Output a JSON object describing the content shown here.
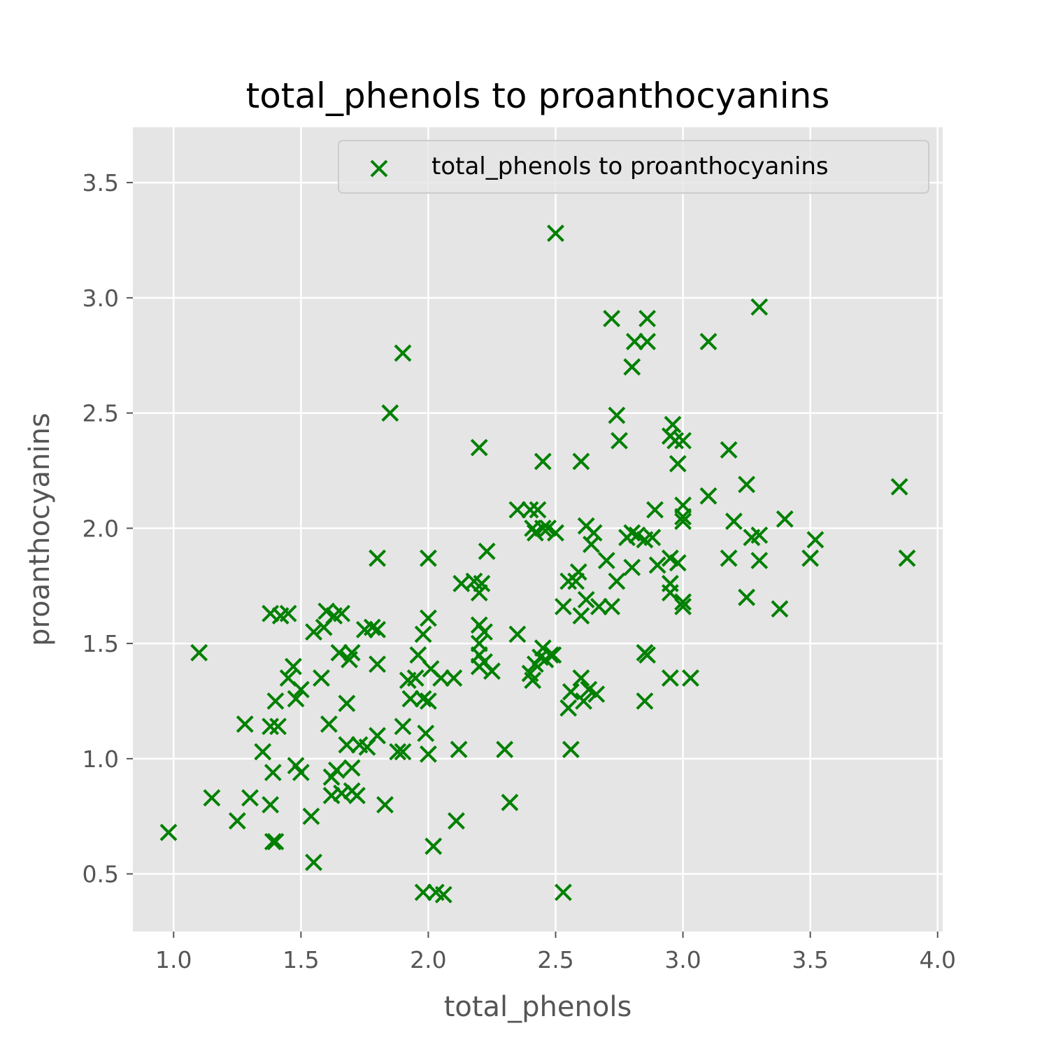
{
  "chart_data": {
    "type": "scatter",
    "title": "total_phenols to proanthocyanins",
    "xlabel": "total_phenols",
    "ylabel": "proanthocyanins",
    "xlim": [
      0.84,
      4.02
    ],
    "ylim": [
      0.25,
      3.74
    ],
    "xticks": [
      "1.0",
      "1.5",
      "2.0",
      "2.5",
      "3.0",
      "3.5",
      "4.0"
    ],
    "yticks": [
      "0.5",
      "1.0",
      "1.5",
      "2.0",
      "2.5",
      "3.0",
      "3.5"
    ],
    "grid": true,
    "legend_position": "upper right",
    "marker": "x",
    "marker_color": "#008000",
    "background_color": "#E5E5E5",
    "series": [
      {
        "name": "total_phenols to proanthocyanins",
        "points": [
          [
            0.98,
            0.68
          ],
          [
            1.1,
            1.46
          ],
          [
            1.15,
            0.83
          ],
          [
            1.25,
            0.73
          ],
          [
            1.28,
            1.15
          ],
          [
            1.3,
            0.83
          ],
          [
            1.35,
            1.03
          ],
          [
            1.38,
            1.63
          ],
          [
            1.38,
            1.14
          ],
          [
            1.38,
            0.8
          ],
          [
            1.39,
            0.94
          ],
          [
            1.39,
            0.64
          ],
          [
            1.4,
            1.25
          ],
          [
            1.4,
            0.64
          ],
          [
            1.41,
            1.14
          ],
          [
            1.42,
            1.62
          ],
          [
            1.45,
            1.63
          ],
          [
            1.45,
            1.35
          ],
          [
            1.47,
            1.4
          ],
          [
            1.48,
            1.26
          ],
          [
            1.48,
            0.97
          ],
          [
            1.5,
            1.3
          ],
          [
            1.5,
            0.94
          ],
          [
            1.54,
            0.75
          ],
          [
            1.55,
            1.55
          ],
          [
            1.55,
            0.55
          ],
          [
            1.58,
            1.35
          ],
          [
            1.59,
            1.57
          ],
          [
            1.6,
            1.64
          ],
          [
            1.61,
            1.15
          ],
          [
            1.62,
            0.92
          ],
          [
            1.62,
            0.84
          ],
          [
            1.63,
            1.62
          ],
          [
            1.64,
            0.95
          ],
          [
            1.65,
            1.46
          ],
          [
            1.66,
            1.63
          ],
          [
            1.66,
            0.85
          ],
          [
            1.68,
            1.24
          ],
          [
            1.68,
            1.06
          ],
          [
            1.69,
            1.43
          ],
          [
            1.7,
            1.46
          ],
          [
            1.7,
            0.96
          ],
          [
            1.7,
            0.86
          ],
          [
            1.72,
            0.84
          ],
          [
            1.73,
            1.06
          ],
          [
            1.75,
            1.56
          ],
          [
            1.76,
            1.05
          ],
          [
            1.78,
            1.57
          ],
          [
            1.8,
            1.87
          ],
          [
            1.8,
            1.41
          ],
          [
            1.8,
            1.56
          ],
          [
            1.8,
            1.1
          ],
          [
            1.83,
            0.8
          ],
          [
            1.85,
            2.5
          ],
          [
            1.88,
            1.03
          ],
          [
            1.9,
            2.76
          ],
          [
            1.9,
            1.14
          ],
          [
            1.9,
            1.03
          ],
          [
            1.92,
            1.34
          ],
          [
            1.93,
            1.26
          ],
          [
            1.95,
            1.35
          ],
          [
            1.96,
            1.45
          ],
          [
            1.98,
            1.54
          ],
          [
            1.98,
            1.26
          ],
          [
            1.98,
            0.42
          ],
          [
            1.99,
            1.11
          ],
          [
            2.0,
            1.87
          ],
          [
            2.0,
            1.61
          ],
          [
            2.0,
            1.25
          ],
          [
            2.0,
            1.02
          ],
          [
            2.01,
            1.39
          ],
          [
            2.02,
            0.62
          ],
          [
            2.03,
            0.42
          ],
          [
            2.05,
            1.35
          ],
          [
            2.06,
            0.41
          ],
          [
            2.1,
            1.35
          ],
          [
            2.11,
            0.73
          ],
          [
            2.12,
            1.04
          ],
          [
            2.13,
            1.76
          ],
          [
            2.18,
            1.77
          ],
          [
            2.2,
            2.35
          ],
          [
            2.2,
            1.72
          ],
          [
            2.2,
            1.58
          ],
          [
            2.2,
            1.5
          ],
          [
            2.2,
            1.45
          ],
          [
            2.2,
            1.4
          ],
          [
            2.21,
            1.76
          ],
          [
            2.22,
            1.55
          ],
          [
            2.22,
            1.42
          ],
          [
            2.23,
            1.9
          ],
          [
            2.25,
            1.38
          ],
          [
            2.3,
            1.04
          ],
          [
            2.32,
            0.81
          ],
          [
            2.35,
            2.08
          ],
          [
            2.35,
            1.54
          ],
          [
            2.4,
            2.08
          ],
          [
            2.4,
            1.37
          ],
          [
            2.41,
            2.0
          ],
          [
            2.41,
            1.34
          ],
          [
            2.42,
            1.98
          ],
          [
            2.42,
            1.41
          ],
          [
            2.43,
            2.08
          ],
          [
            2.44,
            1.44
          ],
          [
            2.45,
            2.29
          ],
          [
            2.45,
            2.0
          ],
          [
            2.45,
            1.48
          ],
          [
            2.46,
            1.43
          ],
          [
            2.47,
            2.0
          ],
          [
            2.48,
            1.45
          ],
          [
            2.49,
            1.45
          ],
          [
            2.5,
            3.28
          ],
          [
            2.5,
            1.98
          ],
          [
            2.53,
            1.66
          ],
          [
            2.53,
            0.42
          ],
          [
            2.55,
            1.77
          ],
          [
            2.55,
            1.22
          ],
          [
            2.56,
            1.29
          ],
          [
            2.56,
            1.04
          ],
          [
            2.58,
            1.77
          ],
          [
            2.59,
            1.81
          ],
          [
            2.6,
            2.29
          ],
          [
            2.6,
            1.62
          ],
          [
            2.6,
            1.35
          ],
          [
            2.61,
            1.25
          ],
          [
            2.62,
            2.01
          ],
          [
            2.62,
            1.69
          ],
          [
            2.63,
            1.3
          ],
          [
            2.64,
            1.93
          ],
          [
            2.65,
            1.98
          ],
          [
            2.66,
            1.28
          ],
          [
            2.67,
            1.66
          ],
          [
            2.7,
            1.86
          ],
          [
            2.72,
            1.66
          ],
          [
            2.72,
            2.91
          ],
          [
            2.74,
            1.77
          ],
          [
            2.74,
            2.49
          ],
          [
            2.75,
            2.38
          ],
          [
            2.78,
            1.96
          ],
          [
            2.8,
            2.7
          ],
          [
            2.8,
            1.98
          ],
          [
            2.8,
            1.83
          ],
          [
            2.81,
            2.81
          ],
          [
            2.82,
            1.97
          ],
          [
            2.85,
            1.95
          ],
          [
            2.85,
            1.46
          ],
          [
            2.85,
            1.25
          ],
          [
            2.86,
            2.81
          ],
          [
            2.86,
            2.91
          ],
          [
            2.86,
            1.45
          ],
          [
            2.88,
            1.96
          ],
          [
            2.89,
            2.08
          ],
          [
            2.9,
            1.84
          ],
          [
            2.95,
            2.4
          ],
          [
            2.95,
            1.87
          ],
          [
            2.95,
            1.76
          ],
          [
            2.95,
            1.72
          ],
          [
            2.95,
            1.35
          ],
          [
            2.96,
            2.45
          ],
          [
            2.97,
            2.38
          ],
          [
            2.98,
            2.28
          ],
          [
            2.98,
            1.85
          ],
          [
            3.0,
            2.38
          ],
          [
            3.0,
            2.1
          ],
          [
            3.0,
            2.05
          ],
          [
            3.0,
            2.03
          ],
          [
            3.0,
            1.68
          ],
          [
            3.0,
            1.66
          ],
          [
            3.03,
            1.35
          ],
          [
            3.1,
            2.81
          ],
          [
            3.1,
            2.14
          ],
          [
            3.18,
            2.34
          ],
          [
            3.18,
            1.87
          ],
          [
            3.2,
            2.03
          ],
          [
            3.25,
            2.19
          ],
          [
            3.25,
            1.7
          ],
          [
            3.27,
            1.96
          ],
          [
            3.3,
            2.96
          ],
          [
            3.3,
            1.97
          ],
          [
            3.3,
            1.86
          ],
          [
            3.38,
            1.65
          ],
          [
            3.4,
            2.04
          ],
          [
            3.5,
            1.87
          ],
          [
            3.52,
            1.95
          ],
          [
            3.85,
            2.18
          ],
          [
            3.88,
            1.87
          ]
        ]
      }
    ]
  }
}
